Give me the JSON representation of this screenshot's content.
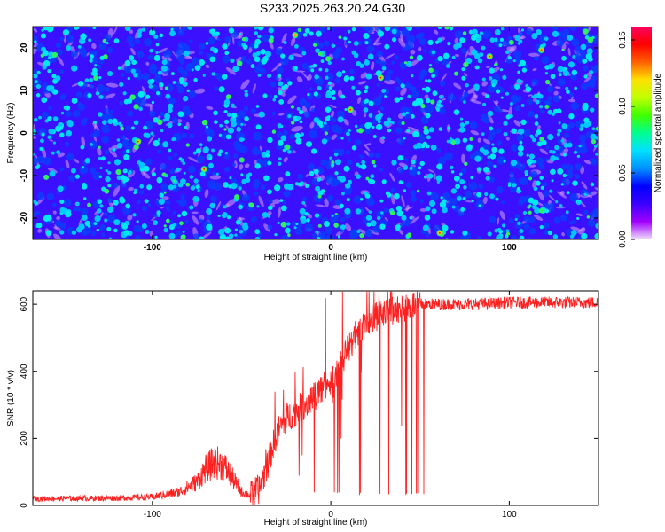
{
  "title": "S233.2025.263.20.24.G30",
  "chart_data": [
    {
      "type": "heatmap",
      "xlabel": "Height of straight line (km)",
      "ylabel": "Frequency (Hz)",
      "xlim": [
        -167,
        150
      ],
      "ylim": [
        -25,
        25
      ],
      "xticks": [
        -100,
        0,
        100
      ],
      "yticks": [
        -20,
        -10,
        0,
        10,
        20
      ],
      "colorbar": {
        "label": "Normalized spectral amplitude",
        "range": [
          0,
          0.16
        ],
        "ticks": [
          0.0,
          0.05,
          0.1,
          0.15
        ],
        "tick_labels": [
          "0.00",
          "0.05",
          "0.10",
          "0.15"
        ],
        "colors": [
          "#f0e0ff",
          "#a000ff",
          "#3a00ff",
          "#0000ff",
          "#0090ff",
          "#00e0ff",
          "#00ff90",
          "#40ff00",
          "#c0ff00",
          "#ffe000",
          "#ff6000",
          "#ff0000",
          "#ff0060"
        ]
      },
      "description_note": "background ~0.01-0.03, scattered spots up to ~0.15",
      "background_level": 0.02,
      "peak_level": 0.15
    },
    {
      "type": "line",
      "xlabel": "Height of straight line (km)",
      "ylabel": "SNR (10 * v/v)",
      "xlim": [
        -167,
        150
      ],
      "ylim": [
        0,
        640
      ],
      "xticks": [
        -100,
        0,
        100
      ],
      "yticks": [
        0,
        200,
        400,
        600
      ],
      "line_color": "#ff2020",
      "profile_x": [
        -167,
        -120,
        -100,
        -85,
        -75,
        -70,
        -65,
        -60,
        -55,
        -50,
        -45,
        -40,
        -35,
        -30,
        -25,
        -20,
        -15,
        -10,
        -5,
        0,
        5,
        10,
        15,
        20,
        25,
        30,
        35,
        40,
        45,
        50,
        60,
        80,
        100,
        120,
        150
      ],
      "profile_y": [
        20,
        22,
        25,
        40,
        70,
        110,
        130,
        120,
        80,
        40,
        30,
        50,
        130,
        220,
        260,
        280,
        300,
        320,
        350,
        370,
        420,
        470,
        520,
        540,
        560,
        570,
        580,
        590,
        595,
        600,
        600,
        600,
        605,
        605,
        605
      ],
      "dropout_range_x": [
        -10,
        58
      ],
      "dropout_floor_y": 30
    }
  ]
}
